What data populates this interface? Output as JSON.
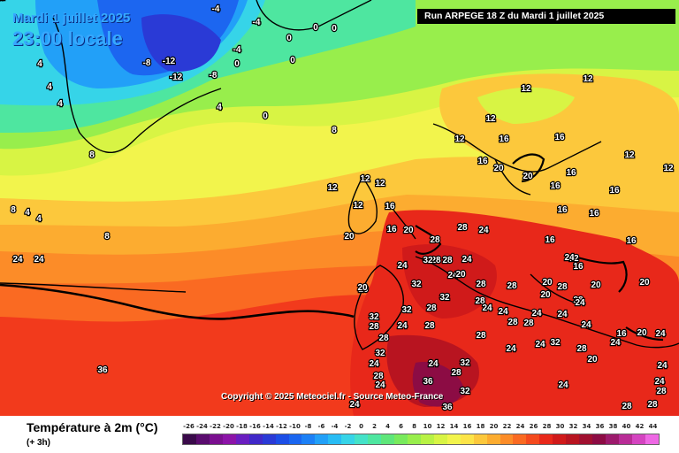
{
  "header": {
    "date": "Mardi 1 juillet 2025",
    "time": "23:00 locale",
    "run": "Run ARPEGE 18 Z du Mardi 1 juillet 2025"
  },
  "map": {
    "copyright": "Copyright © 2025 Meteociel.fr - Source Meteo-France",
    "labels": [
      {
        "text": "-4"
      },
      {
        "text": "-4"
      },
      {
        "text": "0"
      },
      {
        "text": "0"
      },
      {
        "text": "0"
      },
      {
        "text": "-8"
      },
      {
        "text": "-12"
      },
      {
        "text": "-12"
      },
      {
        "text": "-8"
      },
      {
        "text": "0"
      },
      {
        "text": "-4"
      },
      {
        "text": "0"
      },
      {
        "text": "4"
      },
      {
        "text": "4"
      },
      {
        "text": "4"
      },
      {
        "text": "8"
      },
      {
        "text": "4"
      },
      {
        "text": "8"
      },
      {
        "text": "4"
      },
      {
        "text": "8"
      },
      {
        "text": "0"
      },
      {
        "text": "4"
      },
      {
        "text": "8"
      },
      {
        "text": "12"
      },
      {
        "text": "12"
      },
      {
        "text": "12"
      },
      {
        "text": "12"
      },
      {
        "text": "16"
      },
      {
        "text": "16"
      },
      {
        "text": "20"
      },
      {
        "text": "20"
      },
      {
        "text": "20"
      },
      {
        "text": "24"
      },
      {
        "text": "24"
      },
      {
        "text": "12"
      },
      {
        "text": "12"
      },
      {
        "text": "12"
      },
      {
        "text": "12"
      },
      {
        "text": "12"
      },
      {
        "text": "16"
      },
      {
        "text": "16"
      },
      {
        "text": "16"
      },
      {
        "text": "20"
      },
      {
        "text": "20"
      },
      {
        "text": "16"
      },
      {
        "text": "16"
      },
      {
        "text": "16"
      },
      {
        "text": "16"
      },
      {
        "text": "16"
      },
      {
        "text": "12"
      },
      {
        "text": "16"
      },
      {
        "text": "16"
      },
      {
        "text": "16"
      },
      {
        "text": "12"
      },
      {
        "text": "20"
      },
      {
        "text": "24"
      },
      {
        "text": "28"
      },
      {
        "text": "28"
      },
      {
        "text": "24"
      },
      {
        "text": "28"
      },
      {
        "text": "32"
      },
      {
        "text": "28"
      },
      {
        "text": "24"
      },
      {
        "text": "32"
      },
      {
        "text": "24"
      },
      {
        "text": "28"
      },
      {
        "text": "28"
      },
      {
        "text": "28"
      },
      {
        "text": "32"
      },
      {
        "text": "20"
      },
      {
        "text": "32"
      },
      {
        "text": "28"
      },
      {
        "text": "28"
      },
      {
        "text": "32"
      },
      {
        "text": "28"
      },
      {
        "text": "24"
      },
      {
        "text": "32"
      },
      {
        "text": "24"
      },
      {
        "text": "28"
      },
      {
        "text": "28"
      },
      {
        "text": "28"
      },
      {
        "text": "32"
      },
      {
        "text": "24"
      },
      {
        "text": "28"
      },
      {
        "text": "36"
      },
      {
        "text": "28"
      },
      {
        "text": "32"
      },
      {
        "text": "36"
      },
      {
        "text": "24"
      },
      {
        "text": "24"
      },
      {
        "text": "24"
      },
      {
        "text": "24"
      },
      {
        "text": "28"
      },
      {
        "text": "24"
      },
      {
        "text": "24"
      },
      {
        "text": "28"
      },
      {
        "text": "20"
      },
      {
        "text": "24"
      },
      {
        "text": "20"
      },
      {
        "text": "28"
      },
      {
        "text": "24"
      },
      {
        "text": "24"
      },
      {
        "text": "20"
      },
      {
        "text": "24"
      },
      {
        "text": "28"
      },
      {
        "text": "20"
      },
      {
        "text": "16"
      },
      {
        "text": "20"
      },
      {
        "text": "24"
      },
      {
        "text": "24"
      },
      {
        "text": "24"
      },
      {
        "text": "28"
      },
      {
        "text": "28"
      },
      {
        "text": "20"
      },
      {
        "text": "24"
      },
      {
        "text": "28"
      },
      {
        "text": "32"
      },
      {
        "text": "24"
      },
      {
        "text": "36"
      },
      {
        "text": "24"
      },
      {
        "text": "20"
      },
      {
        "text": "16"
      },
      {
        "text": "16"
      },
      {
        "text": "16"
      },
      {
        "text": "12"
      }
    ]
  },
  "legend": {
    "variable": "Température à 2m (°C)",
    "step": "(+ 3h)",
    "ticks": [
      "-26",
      "-24",
      "-22",
      "-20",
      "-18",
      "-16",
      "-14",
      "-12",
      "-10",
      "-8",
      "-6",
      "-4",
      "-2",
      "0",
      "2",
      "4",
      "6",
      "8",
      "10",
      "12",
      "14",
      "16",
      "18",
      "20",
      "22",
      "24",
      "26",
      "28",
      "30",
      "32",
      "34",
      "36",
      "38",
      "40",
      "42",
      "44"
    ],
    "colors": [
      "#3a0a4a",
      "#5a0c6e",
      "#7a0f8f",
      "#8c14a8",
      "#6a1ec0",
      "#4028c8",
      "#2a3ad6",
      "#1c4ee6",
      "#1a66f0",
      "#1c80f6",
      "#22a0f8",
      "#28bcf4",
      "#36d4e8",
      "#44e2c8",
      "#4ee6a0",
      "#5ee67a",
      "#78ea5c",
      "#98ee4c",
      "#b8f244",
      "#d8f444",
      "#f2f44c",
      "#fce448",
      "#fcc83c",
      "#fcac30",
      "#fc8c28",
      "#fa6a22",
      "#f44a1e",
      "#e8281a",
      "#d01a1a",
      "#b81420",
      "#a01030",
      "#8c0c44",
      "#9c1a6c",
      "#b82c96",
      "#d444c0",
      "#ee68e4"
    ]
  }
}
